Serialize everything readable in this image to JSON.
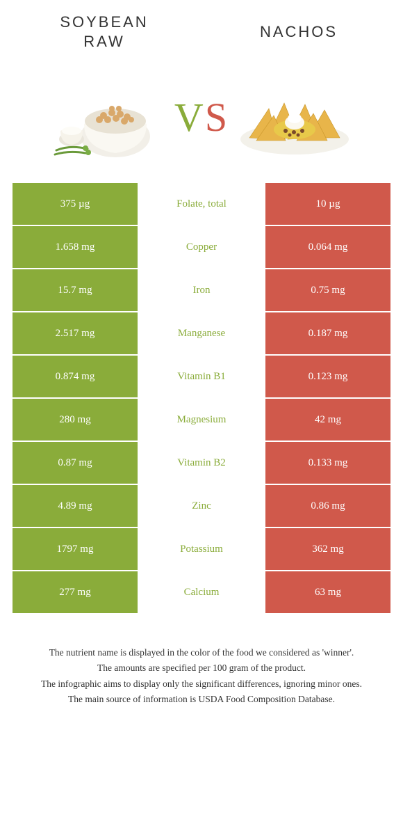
{
  "titles": {
    "left": "SOYBEAN\nRAW",
    "right": "NACHOS"
  },
  "vs": {
    "v": "V",
    "s": "S"
  },
  "colors": {
    "leftBg": "#8aac3a",
    "rightBg": "#d0594b",
    "white": "#ffffff",
    "text": "#333333"
  },
  "rows": [
    {
      "left": "375 µg",
      "mid": "Folate, total",
      "right": "10 µg",
      "winner": "green"
    },
    {
      "left": "1.658 mg",
      "mid": "Copper",
      "right": "0.064 mg",
      "winner": "green"
    },
    {
      "left": "15.7 mg",
      "mid": "Iron",
      "right": "0.75 mg",
      "winner": "green"
    },
    {
      "left": "2.517 mg",
      "mid": "Manganese",
      "right": "0.187 mg",
      "winner": "green"
    },
    {
      "left": "0.874 mg",
      "mid": "Vitamin B1",
      "right": "0.123 mg",
      "winner": "green"
    },
    {
      "left": "280 mg",
      "mid": "Magnesium",
      "right": "42 mg",
      "winner": "green"
    },
    {
      "left": "0.87 mg",
      "mid": "Vitamin B2",
      "right": "0.133 mg",
      "winner": "green"
    },
    {
      "left": "4.89 mg",
      "mid": "Zinc",
      "right": "0.86 mg",
      "winner": "green"
    },
    {
      "left": "1797 mg",
      "mid": "Potassium",
      "right": "362 mg",
      "winner": "green"
    },
    {
      "left": "277 mg",
      "mid": "Calcium",
      "right": "63 mg",
      "winner": "green"
    }
  ],
  "footnotes": [
    "The nutrient name is displayed in the color of the food we considered as 'winner'.",
    "The amounts are specified per 100 gram of the product.",
    "The infographic aims to display only the significant differences, ignoring minor ones.",
    "The main source of information is USDA Food Composition Database."
  ]
}
